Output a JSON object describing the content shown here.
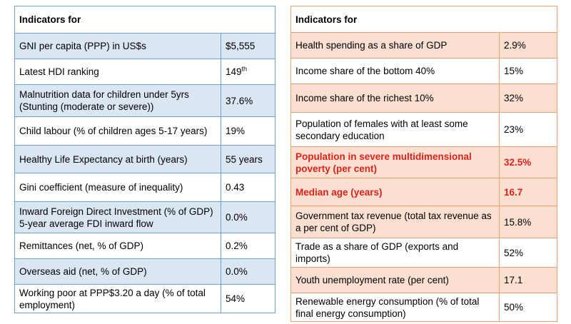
{
  "left_table": {
    "header": "Indicators for",
    "rows": [
      {
        "label": "GNI per capita (PPP) in US$s",
        "value": "$5,555"
      },
      {
        "label": "Latest HDI ranking",
        "value": "149",
        "value_sup": "th"
      },
      {
        "label": "Malnutrition data for children under 5yrs (Stunting (moderate or severe))",
        "value": "37.6%"
      },
      {
        "label": "Child labour (% of children ages 5-17 years)",
        "value": "19%"
      },
      {
        "label": "Healthy Life Expectancy at birth (years)",
        "value": "55 years"
      },
      {
        "label": "Gini coefficient (measure of inequality)",
        "value": "0.43"
      },
      {
        "label": "Inward Foreign Direct Investment (% of GDP) 5-year average FDI inward flow",
        "value": "0.0%"
      },
      {
        "label": "Remittances (net, % of GDP)",
        "value": "0.2%"
      },
      {
        "label": "Overseas aid (net, % of GDP)",
        "value": "0.0%"
      },
      {
        "label": "Working poor at PPP$3.20 a day (% of total employment)",
        "value": "54%"
      }
    ]
  },
  "right_table": {
    "header": "Indicators for",
    "rows": [
      {
        "label": "Health spending as a share of GDP",
        "value": "2.9%"
      },
      {
        "label": "Income share of the bottom 40%",
        "value": "15%"
      },
      {
        "label": "Income share of the richest 10%",
        "value": "32%"
      },
      {
        "label": "Population of females with at least some secondary education",
        "value": "23%"
      },
      {
        "label": "Population in severe multidimensional poverty (per cent)",
        "value": "32.5%"
      },
      {
        "label": "Median age (years)",
        "value": "16.7"
      },
      {
        "label": "Government tax revenue (total tax revenue as a per cent of GDP)",
        "value": "15.8%"
      },
      {
        "label": "Trade as a share of GDP (exports and imports)",
        "value": "52%"
      },
      {
        "label": "Youth unemployment rate (per cent)",
        "value": "17.1"
      },
      {
        "label": "Renewable energy consumption (% of total final energy consumption)",
        "value": "50%"
      }
    ]
  },
  "colors": {
    "left_border": "#6f9fd3",
    "left_shade": "#dbe6f3",
    "right_border": "#f0a070",
    "right_shade": "#fbe0d2",
    "highlight_text": "#e0201b"
  }
}
